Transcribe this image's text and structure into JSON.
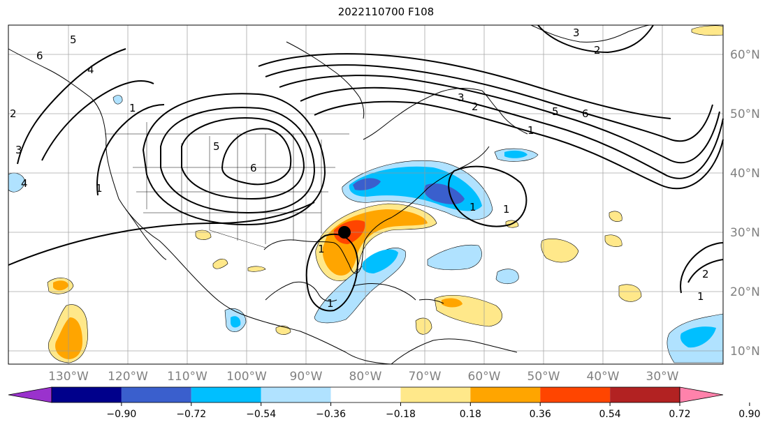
{
  "title": "2022110700 F108",
  "map": {
    "lat_labels": [
      "60°N",
      "50°N",
      "40°N",
      "30°N",
      "20°N",
      "10°N"
    ],
    "lon_labels": [
      "130°W",
      "120°W",
      "110°W",
      "100°W",
      "90°W",
      "80°W",
      "70°W",
      "60°W",
      "50°W",
      "40°W",
      "30°W"
    ],
    "contour_labels": [
      "5",
      "6",
      "4",
      "3",
      "2",
      "1",
      "5",
      "6",
      "3",
      "2",
      "1",
      "5",
      "6",
      "1",
      "1",
      "1",
      "2",
      "1",
      "4",
      "3",
      "2",
      "1",
      "1"
    ],
    "marker": "storm-center-dot"
  },
  "colorbar": {
    "ticks": [
      "−0.90",
      "−0.72",
      "−0.54",
      "−0.36",
      "−0.18",
      "0.18",
      "0.36",
      "0.54",
      "0.72",
      "0.90"
    ],
    "colors": [
      "#9a32cd",
      "#00008b",
      "#3a5fcd",
      "#00bfff",
      "#b0e2ff",
      "#ffffff",
      "#ffe88a",
      "#ffa500",
      "#ff4500",
      "#b22222",
      "#ff82ab"
    ]
  }
}
